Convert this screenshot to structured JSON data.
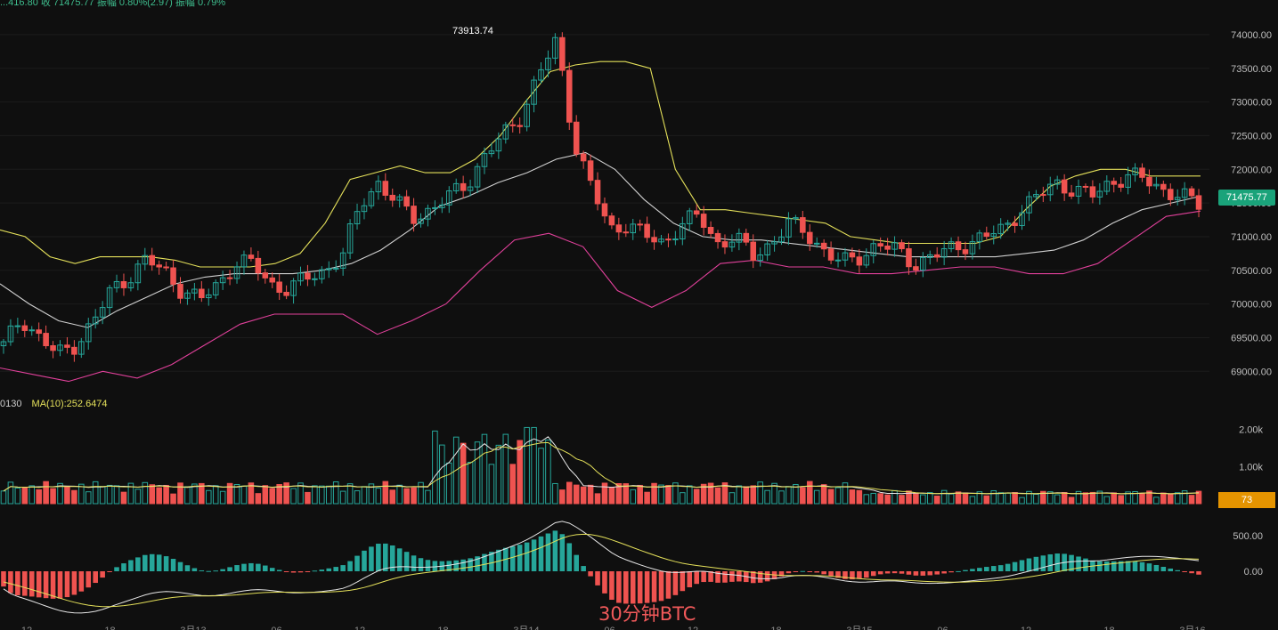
{
  "header": {
    "top_info": "...416.80  收 71475.77  振幅 0.80%(2.97)  振幅 0.79%"
  },
  "volume_legend": {
    "left": "0130",
    "ma_label": "MA(10):252.6474"
  },
  "caption": "30分钟BTC",
  "colors": {
    "up": "#26a69a",
    "down": "#ef5350",
    "upper_band": "#e4e05a",
    "mid_band": "#d0d0d0",
    "lower_band": "#e0409a",
    "vol_ma_white": "#e6e6e6",
    "vol_ma_yellow": "#e4e05a"
  },
  "chart_data": [
    {
      "type": "line",
      "name": "price",
      "high_label": "73913.74",
      "last_price_tag": "71475.77",
      "y_ticks": [
        "74000.00",
        "73500.00",
        "73000.00",
        "72500.00",
        "72000.00",
        "71500.00",
        "71000.00",
        "70500.00",
        "70000.00",
        "69500.00",
        "69000.00"
      ],
      "ylim": [
        68700,
        74250
      ],
      "x_tick_labels": [
        "12",
        "18",
        "3月13",
        "06",
        "12",
        "18",
        "3月14",
        "06",
        "12",
        "18",
        "3月15",
        "06",
        "12",
        "18",
        "3月16"
      ],
      "series": [
        {
          "values": [
            69380,
            69800,
            69500,
            69250,
            69400,
            69700,
            70200,
            70400,
            70650,
            70500,
            70200,
            70050,
            70300,
            70600,
            70600,
            70300,
            70200,
            70400,
            70500,
            70700,
            71500,
            71800,
            71500,
            71300,
            71400,
            71600,
            71800,
            72200,
            72500,
            72800,
            73400,
            73913,
            72400,
            71700,
            71100,
            71200,
            71000,
            70900,
            71200,
            71300,
            70900,
            71000,
            70700,
            70900,
            71200,
            71050,
            70800,
            70600,
            70700,
            70900,
            70800,
            70600,
            70700,
            70800,
            70900,
            71000,
            71100,
            71400,
            71600,
            71800,
            71700,
            71600,
            71800,
            71900,
            71850,
            71700,
            71600,
            71480
          ]
        },
        {
          "values": [
            71100,
            71000,
            70700,
            70600,
            70700,
            70700,
            70700,
            70650,
            70550,
            70550,
            70550,
            70600,
            70750,
            71200,
            71850,
            71950,
            72050,
            71950,
            71950,
            72150,
            72500,
            73000,
            73450,
            73550,
            73600,
            73600,
            73500,
            72000,
            71400,
            71400,
            71350,
            71300,
            71250,
            71200,
            71000,
            70950,
            70900,
            70900,
            70900,
            70900,
            71000,
            71400,
            71750,
            71900,
            72000,
            72000,
            71900,
            71900,
            71900
          ]
        },
        {
          "values": [
            70300,
            70000,
            69750,
            69650,
            69900,
            70100,
            70300,
            70400,
            70450,
            70450,
            70450,
            70500,
            70600,
            70800,
            71100,
            71450,
            71600,
            71800,
            71950,
            72150,
            72250,
            72000,
            71550,
            71200,
            71000,
            70950,
            70950,
            70900,
            70850,
            70800,
            70750,
            70700,
            70700,
            70700,
            70700,
            70750,
            70800,
            70950,
            71200,
            71400,
            71500,
            71600
          ]
        },
        {
          "values": [
            69050,
            68950,
            68850,
            69000,
            68900,
            69100,
            69400,
            69700,
            69850,
            69850,
            69850,
            69550,
            69750,
            70000,
            70500,
            70950,
            71050,
            70850,
            70200,
            69950,
            70200,
            70600,
            70650,
            70550,
            70550,
            70450,
            70450,
            70500,
            70550,
            70550,
            70450,
            70450,
            70600,
            70950,
            71300,
            71380
          ]
        }
      ]
    },
    {
      "type": "bar",
      "name": "volume",
      "y_ticks": [
        "2.00k",
        "1.00k"
      ],
      "ylim": [
        0,
        2300
      ],
      "last_volume_tag": "73",
      "series": [
        {
          "name": "MA(10)",
          "values": [
            252.6474
          ]
        }
      ]
    },
    {
      "type": "bar",
      "name": "macd",
      "y_ticks": [
        "500.00",
        "0.00"
      ],
      "ylim": [
        -600,
        700
      ]
    }
  ]
}
